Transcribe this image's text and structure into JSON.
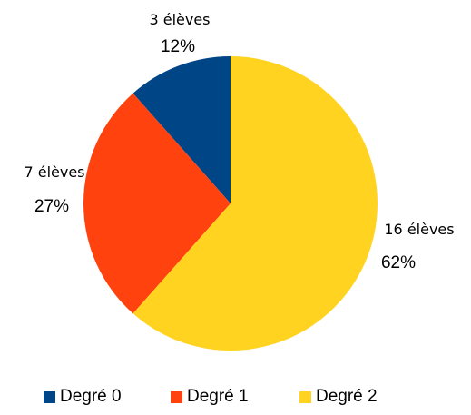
{
  "chart_data": {
    "type": "pie",
    "title": "",
    "categories": [
      "Degré 0",
      "Degré 1",
      "Degré 2"
    ],
    "values": [
      3,
      7,
      16
    ],
    "value_labels": [
      "3 élèves",
      "7 élèves",
      "16 élèves"
    ],
    "percent_labels": [
      "12%",
      "27%",
      "62%"
    ],
    "colors": [
      "#004586",
      "#ff420e",
      "#ffd320"
    ],
    "legend_position": "bottom"
  }
}
